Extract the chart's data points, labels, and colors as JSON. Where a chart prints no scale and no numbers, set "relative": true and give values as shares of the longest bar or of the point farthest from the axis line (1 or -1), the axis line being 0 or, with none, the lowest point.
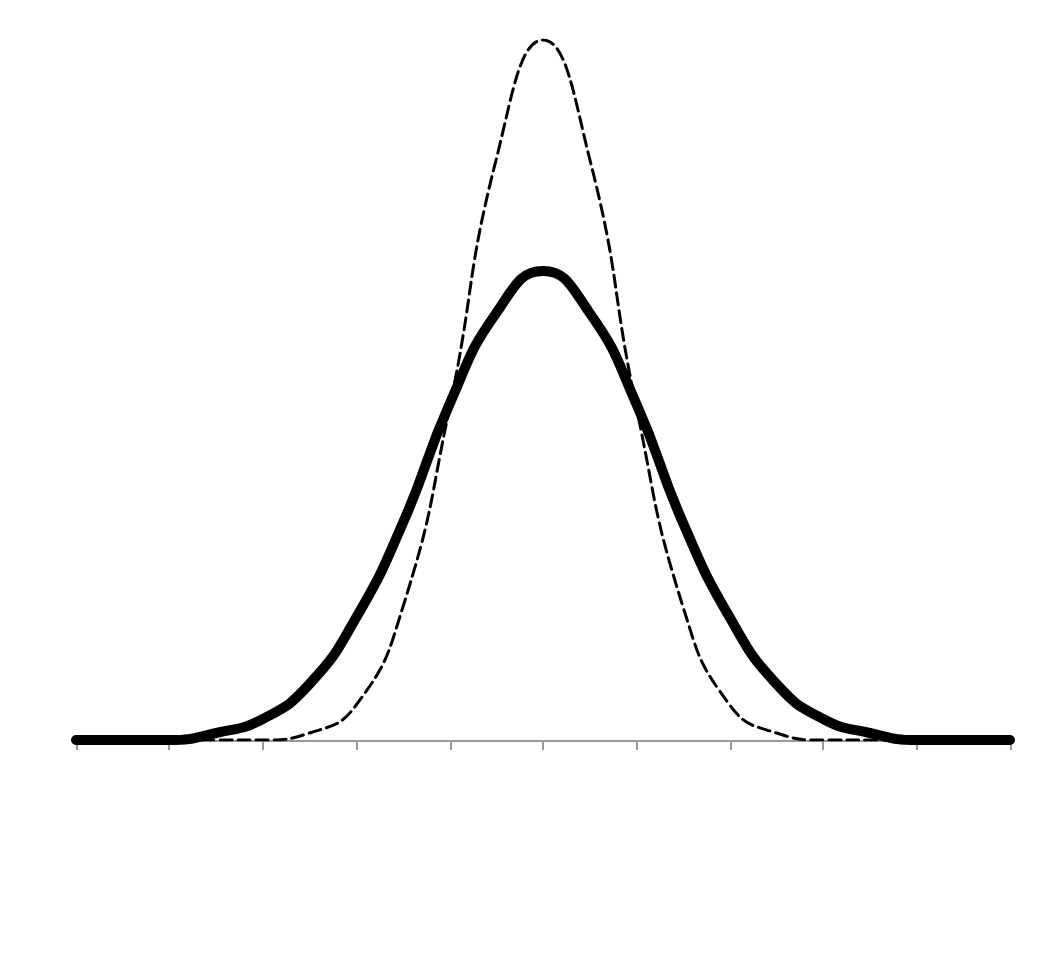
{
  "chart_data": {
    "type": "line",
    "relative": true,
    "marker": "none",
    "categories": [
      null,
      null,
      null,
      null,
      null,
      null,
      null,
      null,
      null,
      null,
      null,
      null,
      null,
      null,
      null,
      null,
      null,
      null,
      null,
      null,
      null
    ],
    "series": [
      {
        "color": "#000000",
        "line_style": "dashed",
        "values": [
          0,
          0,
          0,
          0,
          0,
          0.01,
          0.05,
          0.19,
          0.475,
          0.83,
          1,
          0.83,
          0.475,
          0.19,
          0.05,
          0.01,
          0,
          0,
          0,
          0,
          0
        ]
      },
      {
        "color": "#000000",
        "line_style": "solid",
        "values": [
          0,
          0,
          0,
          0.01,
          0.03,
          0.08,
          0.175,
          0.31,
          0.48,
          0.61,
          0.67,
          0.61,
          0.48,
          0.31,
          0.175,
          0.08,
          0.03,
          0.01,
          0,
          0,
          0
        ]
      }
    ]
  }
}
